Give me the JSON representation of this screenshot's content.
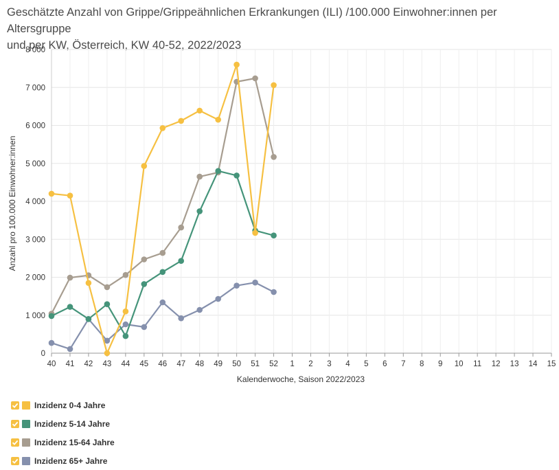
{
  "title_lines": [
    "Geschätzte Anzahl von Grippe/Grippeähnlichen Erkrankungen (ILI) /100.000 Einwohner:innen per Altersgruppe",
    "und per KW, Österreich, KW 40-52, 2022/2023"
  ],
  "chart_data": {
    "type": "line",
    "title": "Geschätzte Anzahl von Grippe/Grippeähnlichen Erkrankungen (ILI) /100.000 Einwohner:innen per Altersgruppe und per KW, Österreich, KW 40-52, 2022/2023",
    "xlabel": "Kalenderwoche, Saison 2022/2023",
    "ylabel": "Anzahl pro 100.000 Einwohner:innen",
    "categories": [
      "40",
      "41",
      "42",
      "43",
      "44",
      "45",
      "46",
      "47",
      "48",
      "49",
      "50",
      "51",
      "52",
      "1",
      "2",
      "3",
      "4",
      "5",
      "6",
      "7",
      "8",
      "9",
      "10",
      "11",
      "12",
      "13",
      "14",
      "15"
    ],
    "ylim": [
      0,
      8000
    ],
    "yticks": [
      0,
      1000,
      2000,
      3000,
      4000,
      5000,
      6000,
      7000,
      8000
    ],
    "ytick_labels": [
      "0",
      "1 000",
      "2 000",
      "3 000",
      "4 000",
      "5 000",
      "6 000",
      "7 000",
      "8 000"
    ],
    "grid": true,
    "legend_position": "bottom-left",
    "series": [
      {
        "name": "Inzidenz 0-4 Jahre",
        "color": "#f6c042",
        "values": [
          4200,
          4150,
          1850,
          0,
          1100,
          4930,
          5930,
          6120,
          6390,
          6150,
          7600,
          3170,
          7060,
          null,
          null,
          null,
          null,
          null,
          null,
          null,
          null,
          null,
          null,
          null,
          null,
          null,
          null,
          null
        ]
      },
      {
        "name": "Inzidenz 5-14 Jahre",
        "color": "#45947a",
        "values": [
          980,
          1220,
          900,
          1290,
          450,
          1820,
          2140,
          2430,
          3740,
          4800,
          4680,
          3230,
          3100,
          null,
          null,
          null,
          null,
          null,
          null,
          null,
          null,
          null,
          null,
          null,
          null,
          null,
          null,
          null
        ]
      },
      {
        "name": "Inzidenz 15-64 Jahre",
        "color": "#a79d90",
        "values": [
          1040,
          1990,
          2050,
          1740,
          2060,
          2470,
          2640,
          3310,
          4650,
          4760,
          7150,
          7240,
          5170,
          null,
          null,
          null,
          null,
          null,
          null,
          null,
          null,
          null,
          null,
          null,
          null,
          null,
          null,
          null
        ]
      },
      {
        "name": "Inzidenz 65+ Jahre",
        "color": "#8590ad",
        "values": [
          270,
          110,
          900,
          330,
          760,
          690,
          1340,
          920,
          1140,
          1430,
          1780,
          1860,
          1610,
          null,
          null,
          null,
          null,
          null,
          null,
          null,
          null,
          null,
          null,
          null,
          null,
          null,
          null,
          null
        ]
      }
    ]
  }
}
